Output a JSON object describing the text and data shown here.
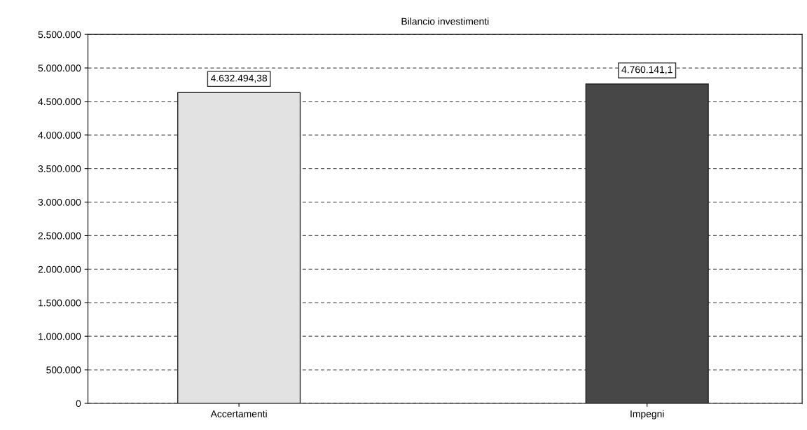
{
  "chart_data": {
    "type": "bar",
    "title": "Bilancio investimenti",
    "categories": [
      "Accertamenti",
      "Impegni"
    ],
    "values": [
      4632494.38,
      4760141.1
    ],
    "colors": [
      "#e2e2e2",
      "#474747"
    ],
    "value_labels": [
      "4.632.494,38",
      "4.760.141,1"
    ],
    "ylim": [
      0,
      5500000
    ],
    "yticks": [
      {
        "value": 0,
        "label": "0"
      },
      {
        "value": 500000,
        "label": "500.000"
      },
      {
        "value": 1000000,
        "label": "1.000.000"
      },
      {
        "value": 1500000,
        "label": "1.500.000"
      },
      {
        "value": 2000000,
        "label": "2.000.000"
      },
      {
        "value": 2500000,
        "label": "2.500.000"
      },
      {
        "value": 3000000,
        "label": "3.000.000"
      },
      {
        "value": 3500000,
        "label": "3.500.000"
      },
      {
        "value": 4000000,
        "label": "4.000.000"
      },
      {
        "value": 4500000,
        "label": "4.500.000"
      },
      {
        "value": 5000000,
        "label": "5.000.000"
      },
      {
        "value": 5500000,
        "label": "5.500.000"
      }
    ],
    "grid": "y"
  }
}
